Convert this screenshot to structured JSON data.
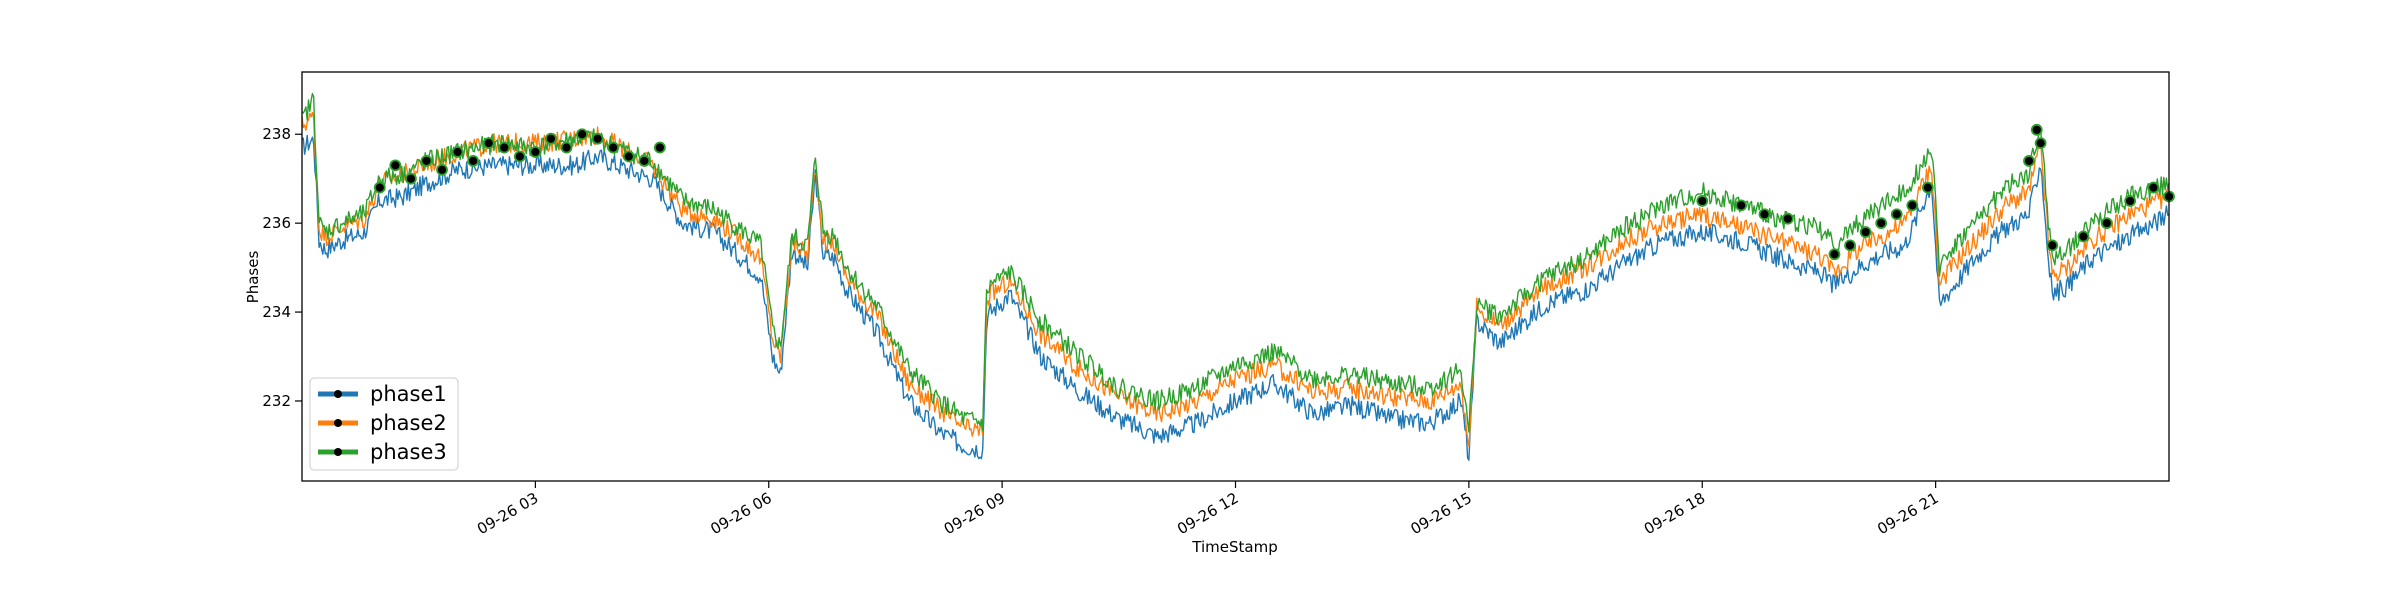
{
  "chart_data": {
    "type": "line",
    "title": "",
    "xlabel": "TimeStamp",
    "ylabel": "Phases",
    "x_unit": "hour of 09-26",
    "xlim": [
      0,
      24
    ],
    "ylim": [
      230.2,
      239.4
    ],
    "grid": false,
    "legend_position": "lower-left",
    "x_ticks": [
      {
        "value": 3,
        "label": "09-26 03"
      },
      {
        "value": 6,
        "label": "09-26 06"
      },
      {
        "value": 9,
        "label": "09-26 09"
      },
      {
        "value": 12,
        "label": "09-26 12"
      },
      {
        "value": 15,
        "label": "09-26 15"
      },
      {
        "value": 18,
        "label": "09-26 18"
      },
      {
        "value": 21,
        "label": "09-26 21"
      }
    ],
    "y_ticks": [
      {
        "value": 232,
        "label": "232"
      },
      {
        "value": 234,
        "label": "234"
      },
      {
        "value": 236,
        "label": "236"
      },
      {
        "value": 238,
        "label": "238"
      }
    ],
    "series": [
      {
        "name": "phase1",
        "color": "#1f77b4",
        "x": [
          0,
          0.15,
          0.22,
          0.3,
          0.5,
          0.8,
          1,
          1.3,
          1.6,
          2,
          2.5,
          3,
          3.5,
          3.8,
          4.2,
          4.5,
          4.9,
          5.3,
          5.6,
          5.9,
          6.05,
          6.15,
          6.3,
          6.5,
          6.6,
          6.7,
          6.85,
          7,
          7.4,
          7.8,
          8.2,
          8.5,
          8.75,
          8.8,
          8.85,
          9.1,
          9.5,
          10,
          10.5,
          11,
          11.5,
          12,
          12.5,
          13,
          13.5,
          14,
          14.5,
          14.9,
          15,
          15.1,
          15.4,
          16,
          16.5,
          17,
          17.5,
          18,
          18.5,
          19,
          19.5,
          19.7,
          20,
          20.3,
          20.6,
          20.95,
          21.05,
          21.1,
          21.5,
          21.9,
          22.2,
          22.35,
          22.45,
          22.5,
          22.7,
          23,
          23.5,
          24
        ],
        "y": [
          237.7,
          237.9,
          235.6,
          235.4,
          235.6,
          235.8,
          236.5,
          236.6,
          236.9,
          237.2,
          237.3,
          237.3,
          237.3,
          237.5,
          237.2,
          237.0,
          236.0,
          235.8,
          235.3,
          234.8,
          233.0,
          232.6,
          235.4,
          235.0,
          237.1,
          235.3,
          235.2,
          234.5,
          233.5,
          232.0,
          231.3,
          231.0,
          230.9,
          233.8,
          234.0,
          234.4,
          233.0,
          232.2,
          231.6,
          231.2,
          231.5,
          232.0,
          232.4,
          231.7,
          231.9,
          231.6,
          231.5,
          232.0,
          230.7,
          233.8,
          233.3,
          234.2,
          234.5,
          235.1,
          235.6,
          235.8,
          235.6,
          235.2,
          234.9,
          234.6,
          235.0,
          235.3,
          235.5,
          236.9,
          234.1,
          234.3,
          235.2,
          235.9,
          236.2,
          237.4,
          235.2,
          234.4,
          234.6,
          235.2,
          235.7,
          236.2
        ]
      },
      {
        "name": "phase2",
        "color": "#ff7f0e",
        "x": [
          0,
          0.15,
          0.22,
          0.3,
          0.5,
          0.8,
          1,
          1.3,
          1.6,
          2,
          2.5,
          3,
          3.5,
          3.8,
          4.2,
          4.5,
          4.9,
          5.3,
          5.6,
          5.9,
          6.05,
          6.15,
          6.3,
          6.5,
          6.6,
          6.7,
          6.85,
          7,
          7.4,
          7.8,
          8.2,
          8.5,
          8.75,
          8.8,
          8.85,
          9.1,
          9.5,
          10,
          10.5,
          11,
          11.5,
          12,
          12.5,
          13,
          13.5,
          14,
          14.5,
          14.9,
          15,
          15.1,
          15.4,
          16,
          16.5,
          17,
          17.5,
          18,
          18.5,
          19,
          19.5,
          19.7,
          20,
          20.3,
          20.6,
          20.95,
          21.05,
          21.1,
          21.5,
          21.9,
          22.2,
          22.35,
          22.45,
          22.5,
          22.7,
          23,
          23.5,
          24
        ],
        "y": [
          238.2,
          238.4,
          235.9,
          235.7,
          235.9,
          236.1,
          236.9,
          237.1,
          237.3,
          237.6,
          237.8,
          237.8,
          237.9,
          238.0,
          237.6,
          237.3,
          236.3,
          236.1,
          235.7,
          235.2,
          233.4,
          233.0,
          235.6,
          235.3,
          237.3,
          235.6,
          235.5,
          234.8,
          233.9,
          232.4,
          231.8,
          231.4,
          231.3,
          234.2,
          234.4,
          234.7,
          233.5,
          232.7,
          232.1,
          231.7,
          232.0,
          232.5,
          232.8,
          232.2,
          232.3,
          232.1,
          232.0,
          232.4,
          231.0,
          234.1,
          233.7,
          234.6,
          235.0,
          235.6,
          236.0,
          236.2,
          235.9,
          235.6,
          235.3,
          234.9,
          235.4,
          235.7,
          236.0,
          237.3,
          234.6,
          234.8,
          235.6,
          236.4,
          236.7,
          237.8,
          235.6,
          234.8,
          235.0,
          235.6,
          236.2,
          236.6
        ]
      },
      {
        "name": "phase3",
        "color": "#2ca02c",
        "x": [
          0,
          0.15,
          0.22,
          0.3,
          0.5,
          0.8,
          1,
          1.3,
          1.6,
          2,
          2.5,
          3,
          3.5,
          3.8,
          4.2,
          4.5,
          4.9,
          5.3,
          5.6,
          5.9,
          6.05,
          6.15,
          6.3,
          6.5,
          6.6,
          6.7,
          6.85,
          7,
          7.4,
          7.8,
          8.2,
          8.5,
          8.75,
          8.8,
          8.85,
          9.1,
          9.5,
          10,
          10.5,
          11,
          11.5,
          12,
          12.5,
          13,
          13.5,
          14,
          14.5,
          14.9,
          15,
          15.1,
          15.4,
          16,
          16.5,
          17,
          17.5,
          18,
          18.5,
          19,
          19.5,
          19.7,
          20,
          20.3,
          20.6,
          20.95,
          21.05,
          21.1,
          21.5,
          21.9,
          22.2,
          22.35,
          22.45,
          22.5,
          22.7,
          23,
          23.5,
          24
        ],
        "y": [
          238.3,
          238.8,
          236.0,
          235.8,
          236.0,
          236.2,
          237.0,
          237.1,
          237.4,
          237.6,
          237.8,
          237.7,
          237.9,
          237.9,
          237.6,
          237.4,
          236.5,
          236.3,
          235.9,
          235.5,
          233.6,
          233.2,
          235.7,
          235.5,
          237.5,
          235.8,
          235.7,
          235.0,
          234.1,
          232.7,
          232.0,
          231.6,
          231.5,
          234.4,
          234.6,
          234.9,
          233.8,
          233.0,
          232.3,
          232.0,
          232.3,
          232.8,
          233.1,
          232.5,
          232.6,
          232.4,
          232.3,
          232.7,
          231.3,
          234.2,
          233.9,
          234.8,
          235.2,
          235.9,
          236.4,
          236.7,
          236.4,
          236.1,
          235.9,
          235.5,
          236.0,
          236.4,
          236.7,
          237.7,
          235.0,
          235.2,
          236.0,
          236.8,
          237.1,
          238.2,
          236.0,
          235.2,
          235.4,
          236.0,
          236.6,
          236.9
        ]
      }
    ],
    "markers": [
      {
        "x": 1.0,
        "y": 236.8
      },
      {
        "x": 1.2,
        "y": 237.3
      },
      {
        "x": 1.4,
        "y": 237.0
      },
      {
        "x": 1.6,
        "y": 237.4
      },
      {
        "x": 1.8,
        "y": 237.2
      },
      {
        "x": 2.0,
        "y": 237.6
      },
      {
        "x": 2.2,
        "y": 237.4
      },
      {
        "x": 2.4,
        "y": 237.8
      },
      {
        "x": 2.6,
        "y": 237.7
      },
      {
        "x": 2.8,
        "y": 237.5
      },
      {
        "x": 3.0,
        "y": 237.6
      },
      {
        "x": 3.2,
        "y": 237.9
      },
      {
        "x": 3.4,
        "y": 237.7
      },
      {
        "x": 3.6,
        "y": 238.0
      },
      {
        "x": 3.8,
        "y": 237.9
      },
      {
        "x": 4.0,
        "y": 237.7
      },
      {
        "x": 4.2,
        "y": 237.5
      },
      {
        "x": 4.4,
        "y": 237.4
      },
      {
        "x": 4.6,
        "y": 237.7
      },
      {
        "x": 18.0,
        "y": 236.5
      },
      {
        "x": 18.5,
        "y": 236.4
      },
      {
        "x": 18.8,
        "y": 236.2
      },
      {
        "x": 19.1,
        "y": 236.1
      },
      {
        "x": 19.7,
        "y": 235.3
      },
      {
        "x": 19.9,
        "y": 235.5
      },
      {
        "x": 20.1,
        "y": 235.8
      },
      {
        "x": 20.3,
        "y": 236.0
      },
      {
        "x": 20.5,
        "y": 236.2
      },
      {
        "x": 20.7,
        "y": 236.4
      },
      {
        "x": 20.9,
        "y": 236.8
      },
      {
        "x": 22.2,
        "y": 237.4
      },
      {
        "x": 22.3,
        "y": 238.1
      },
      {
        "x": 22.35,
        "y": 237.8
      },
      {
        "x": 22.5,
        "y": 235.5
      },
      {
        "x": 22.9,
        "y": 235.7
      },
      {
        "x": 23.2,
        "y": 236.0
      },
      {
        "x": 23.5,
        "y": 236.5
      },
      {
        "x": 23.8,
        "y": 236.8
      },
      {
        "x": 24.0,
        "y": 236.6
      }
    ]
  }
}
